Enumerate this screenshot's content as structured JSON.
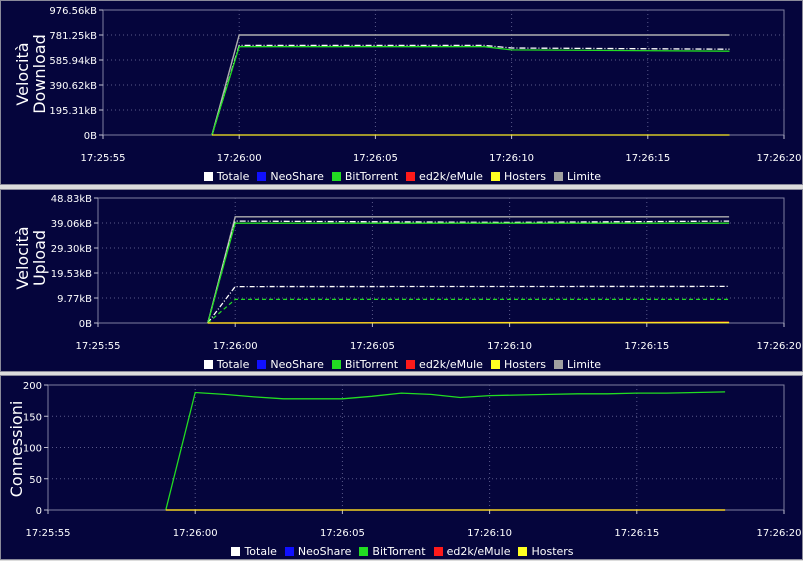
{
  "legend_colors": {
    "Totale": "#ffffff",
    "NeoShare": "#1010ff",
    "BitTorrent": "#22dd22",
    "ed2k/eMule": "#ff1a1a",
    "Hosters": "#ffff22",
    "Limite": "#a0a0a0"
  },
  "chart_data": [
    {
      "type": "line",
      "ylabel": [
        "Velocità",
        "Download"
      ],
      "x_ticks": [
        "17:25:55",
        "17:26:00",
        "17:26:05",
        "17:26:10",
        "17:26:15",
        "17:26:20"
      ],
      "y_ticks": [
        "0B",
        "195.31kB",
        "390.62kB",
        "585.94kB",
        "781.25kB",
        "976.56kB"
      ],
      "ylim": [
        0,
        976.56
      ],
      "xlim": [
        -5,
        20
      ],
      "grid": true,
      "legend": [
        "Totale",
        "NeoShare",
        "BitTorrent",
        "ed2k/eMule",
        "Hosters",
        "Limite"
      ],
      "legend_placement": "bottom-center",
      "series": [
        {
          "name": "Limite",
          "x": [
            -1,
            0,
            18
          ],
          "y": [
            0,
            781,
            781
          ]
        },
        {
          "name": "Totale",
          "x": [
            -1,
            0,
            9,
            10,
            18
          ],
          "y": [
            0,
            700,
            700,
            680,
            670
          ]
        },
        {
          "name": "BitTorrent",
          "x": [
            -1,
            0,
            9,
            10,
            18
          ],
          "y": [
            0,
            690,
            690,
            665,
            655
          ]
        },
        {
          "name": "Hosters",
          "x": [
            -1,
            18
          ],
          "y": [
            0,
            0
          ]
        }
      ]
    },
    {
      "type": "line",
      "ylabel": [
        "Velocità",
        "Upload"
      ],
      "x_ticks": [
        "17:25:55",
        "17:26:00",
        "17:26:05",
        "17:26:10",
        "17:26:15",
        "17:26:20"
      ],
      "y_ticks": [
        "0B",
        "9.77kB",
        "19.53kB",
        "29.30kB",
        "39.06kB",
        "48.83kB"
      ],
      "ylim": [
        0,
        48.83
      ],
      "xlim": [
        -5,
        20
      ],
      "grid": true,
      "legend": [
        "Totale",
        "NeoShare",
        "BitTorrent",
        "ed2k/eMule",
        "Hosters",
        "Limite"
      ],
      "legend_placement": "bottom-center",
      "series": [
        {
          "name": "Limite",
          "x": [
            -1,
            0,
            18
          ],
          "y": [
            0,
            41.5,
            41.5
          ]
        },
        {
          "name": "Totale",
          "x": [
            -1,
            0,
            10,
            18
          ],
          "y": [
            0,
            39.8,
            39.3,
            39.8
          ]
        },
        {
          "name": "BitTorrent",
          "x": [
            -1,
            0,
            18
          ],
          "y": [
            0,
            39.0,
            39.0
          ]
        },
        {
          "name": "Totale-dash",
          "x": [
            -1,
            0,
            18
          ],
          "y": [
            0,
            14.2,
            14.3
          ]
        },
        {
          "name": "BitTorrent-dash",
          "x": [
            -1,
            0,
            18
          ],
          "y": [
            0,
            9.2,
            9.2
          ]
        },
        {
          "name": "ed2k/eMule",
          "x": [
            -1,
            18
          ],
          "y": [
            0,
            0.3
          ]
        },
        {
          "name": "Hosters",
          "x": [
            -1,
            18
          ],
          "y": [
            0,
            0.1
          ]
        }
      ]
    },
    {
      "type": "line",
      "ylabel": [
        "Connessioni"
      ],
      "x_ticks": [
        "17:25:55",
        "17:26:00",
        "17:26:05",
        "17:26:10",
        "17:26:15",
        "17:26:20"
      ],
      "y_ticks": [
        "0",
        "50",
        "100",
        "150",
        "200"
      ],
      "ylim": [
        0,
        200
      ],
      "xlim": [
        -5,
        20
      ],
      "grid": true,
      "legend": [
        "Totale",
        "NeoShare",
        "BitTorrent",
        "ed2k/eMule",
        "Hosters"
      ],
      "legend_placement": "bottom-center",
      "series": [
        {
          "name": "BitTorrent",
          "x": [
            -1,
            0,
            1,
            2,
            3,
            4,
            5,
            6,
            7,
            8,
            9,
            10,
            11,
            12,
            13,
            14,
            15,
            16,
            17,
            18
          ],
          "y": [
            0,
            188,
            185,
            181,
            178,
            178,
            178,
            182,
            187,
            185,
            180,
            183,
            184,
            185,
            186,
            186,
            187,
            187,
            188,
            189
          ]
        },
        {
          "name": "ed2k/eMule",
          "x": [
            -1,
            18
          ],
          "y": [
            0,
            0
          ]
        },
        {
          "name": "Hosters",
          "x": [
            -1,
            18
          ],
          "y": [
            0,
            0
          ]
        }
      ]
    }
  ]
}
